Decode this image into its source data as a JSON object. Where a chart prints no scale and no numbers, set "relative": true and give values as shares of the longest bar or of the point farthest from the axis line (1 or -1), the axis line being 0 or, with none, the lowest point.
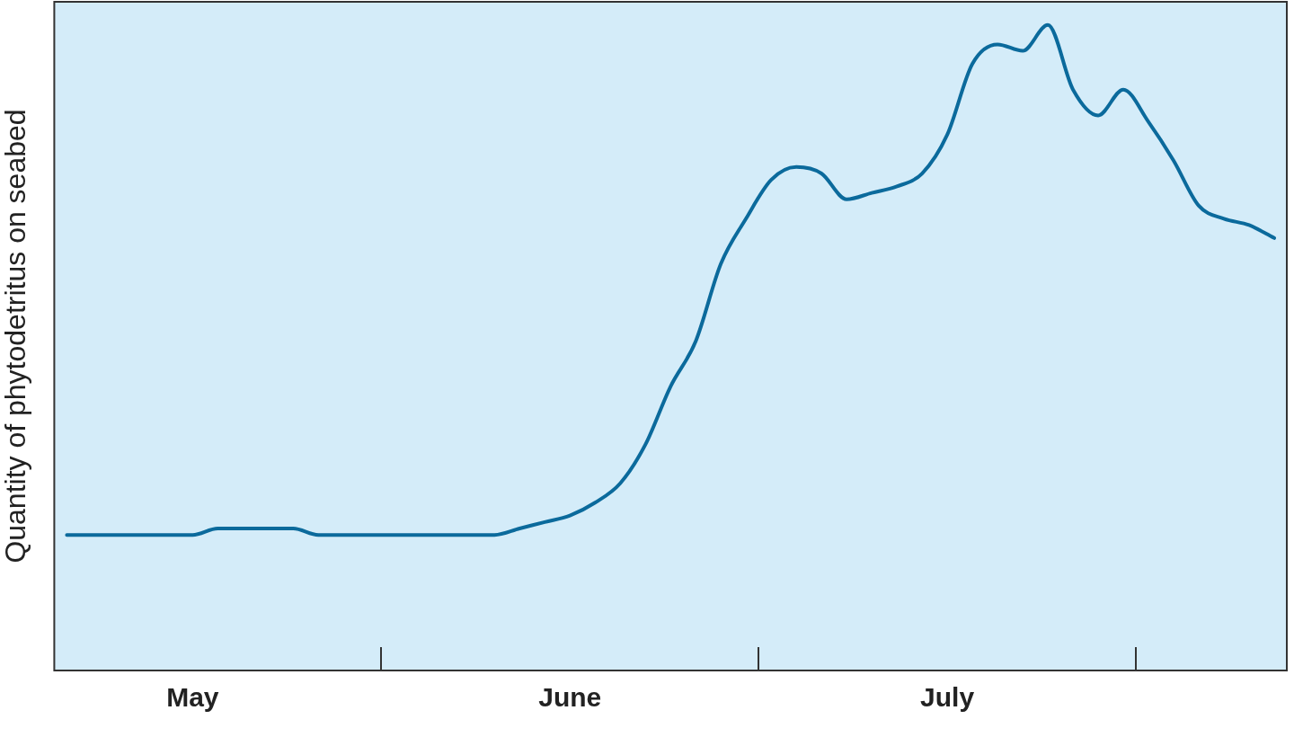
{
  "chart_data": {
    "type": "line",
    "ylabel": "Quantity of phytodetritus on seabed",
    "relative": true,
    "categories": [
      null,
      null,
      null,
      null,
      null,
      "May",
      null,
      null,
      null,
      null,
      null,
      null,
      null,
      null,
      null,
      null,
      null,
      null,
      null,
      null,
      "June",
      null,
      null,
      null,
      null,
      null,
      null,
      null,
      null,
      null,
      null,
      null,
      null,
      null,
      null,
      "July",
      null,
      null,
      null,
      null,
      null,
      null,
      null,
      null,
      null,
      null,
      null,
      null,
      null
    ],
    "grid": false,
    "legend": false,
    "marker": "none",
    "line_style": "solid",
    "series": [
      {
        "color": "#0b6a9c",
        "values": [
          0.21,
          0.21,
          0.21,
          0.21,
          0.21,
          0.21,
          0.22,
          0.22,
          0.22,
          0.22,
          0.21,
          0.21,
          0.21,
          0.21,
          0.21,
          0.21,
          0.21,
          0.21,
          0.22,
          0.23,
          0.24,
          0.26,
          0.29,
          0.35,
          0.44,
          0.51,
          0.63,
          0.7,
          0.76,
          0.78,
          0.77,
          0.73,
          0.74,
          0.75,
          0.77,
          0.83,
          0.94,
          0.97,
          0.96,
          1,
          0.9,
          0.86,
          0.9,
          0.85,
          0.79,
          0.72,
          0.7,
          0.69,
          0.67
        ]
      }
    ]
  }
}
